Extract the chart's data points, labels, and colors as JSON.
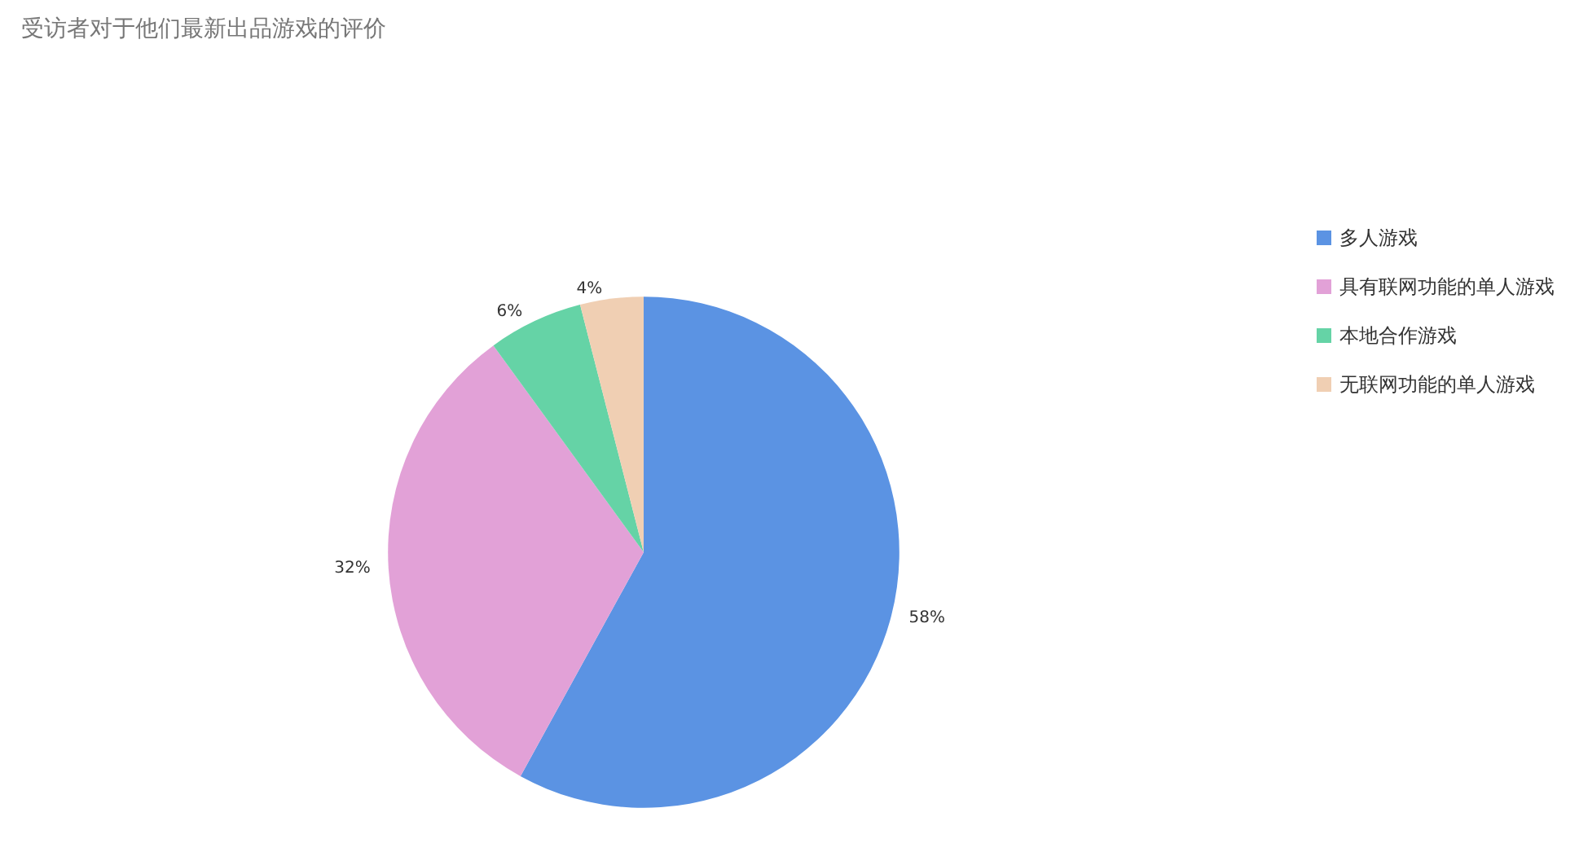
{
  "chart_data": {
    "type": "pie",
    "title": "受访者对于他们最新出品游戏的评价",
    "categories": [
      "多人游戏",
      "具有联网功能的单人游戏",
      "本地合作游戏",
      "无联网功能的单人游戏"
    ],
    "values": [
      58,
      32,
      6,
      4
    ],
    "colors": [
      "#5b93e3",
      "#e2a1d7",
      "#65d3a6",
      "#f0cfb3"
    ],
    "value_labels": [
      "58%",
      "32%",
      "6%",
      "4%"
    ],
    "legend": "right"
  }
}
